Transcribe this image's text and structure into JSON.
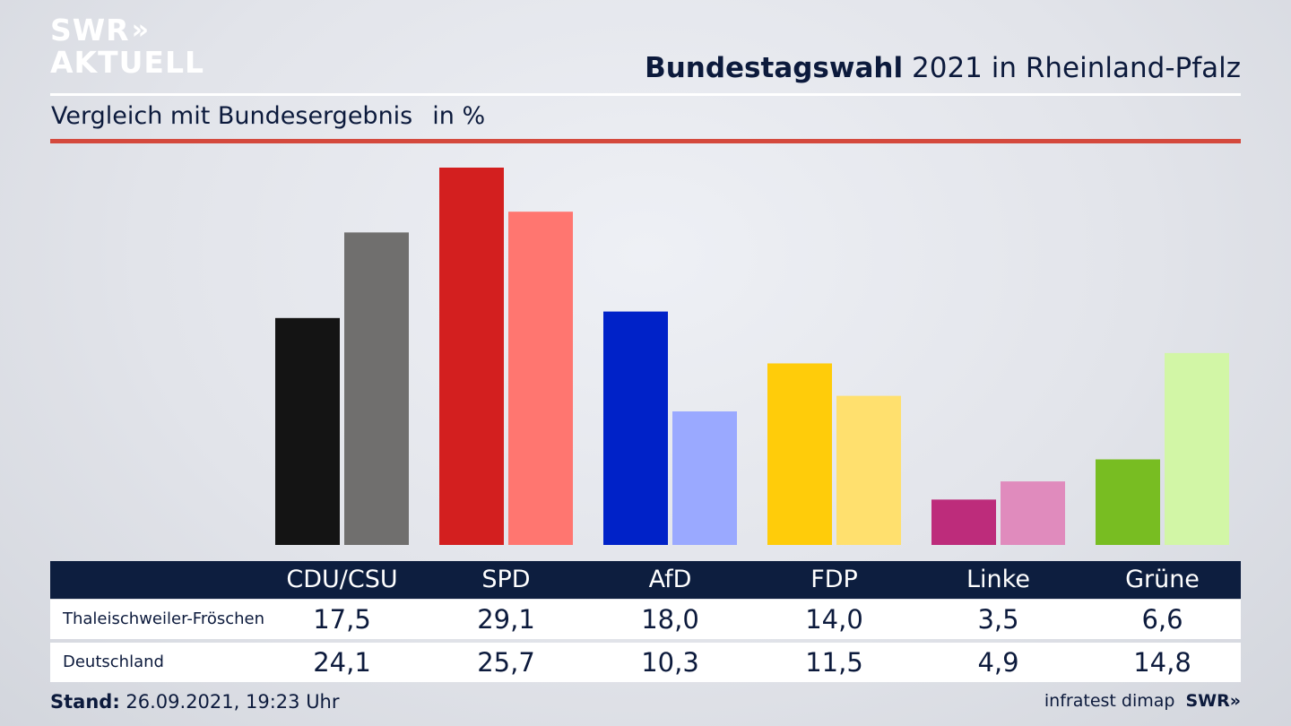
{
  "brand": {
    "logo_line1": "SWR",
    "logo_chevrons": "»",
    "logo_line2": "AKTUELL"
  },
  "header": {
    "title_bold": "Bundestagswahl",
    "title_rest": "2021 in Rheinland-Pfalz"
  },
  "subtitle": {
    "text": "Vergleich mit Bundesergebnis",
    "unit": "in %"
  },
  "chart_data": {
    "type": "bar",
    "categories": [
      "CDU/CSU",
      "SPD",
      "AfD",
      "FDP",
      "Linke",
      "Grüne"
    ],
    "series": [
      {
        "name": "Thaleischweiler-Fröschen",
        "values": [
          17.5,
          29.1,
          18.0,
          14.0,
          3.5,
          6.6
        ],
        "colors": [
          "#141414",
          "#d31f1f",
          "#0022c8",
          "#ffcc0a",
          "#bd2c7b",
          "#78bd22"
        ]
      },
      {
        "name": "Deutschland",
        "values": [
          24.1,
          25.7,
          10.3,
          11.5,
          4.9,
          14.8
        ],
        "colors": [
          "#706f6e",
          "#ff7670",
          "#9aa9ff",
          "#ffe06e",
          "#e08bbd",
          "#d2f6a6"
        ]
      }
    ],
    "value_labels": [
      [
        "17,5",
        "29,1",
        "18,0",
        "14,0",
        "3,5",
        "6,6"
      ],
      [
        "24,1",
        "25,7",
        "10,3",
        "11,5",
        "4,9",
        "14,8"
      ]
    ],
    "ylim": [
      0,
      29.1
    ],
    "grid": false,
    "legend": "table-below"
  },
  "footer": {
    "stand_label": "Stand:",
    "stand_value": "26.09.2021, 19:23 Uhr",
    "credit": "infratest dimap",
    "credit_brand": "SWR»"
  }
}
